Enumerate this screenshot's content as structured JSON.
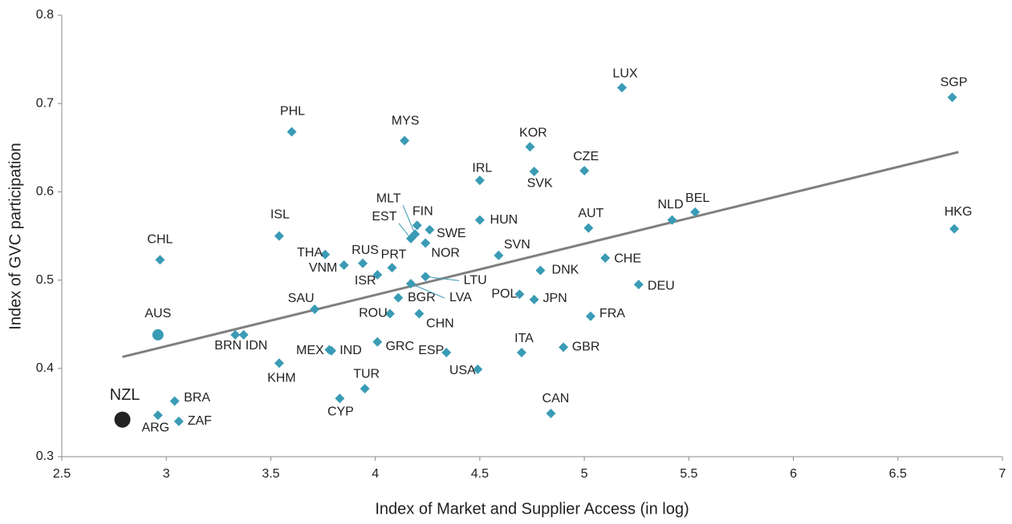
{
  "chart_data": {
    "type": "scatter",
    "x_label": "Index of Market and Supplier Access (in log)",
    "y_label": "Index of GVC participation",
    "xlim": [
      2.5,
      7
    ],
    "xticks": [
      2.5,
      3,
      3.5,
      4,
      4.5,
      5,
      5.5,
      6,
      6.5,
      7
    ],
    "ylim": [
      0.3,
      0.8
    ],
    "yticks": [
      0.3,
      0.4,
      0.5,
      0.6,
      0.7,
      0.8
    ],
    "grid": false,
    "color": "#3a9bb5",
    "trendline_color": "#808080",
    "trendline": {
      "x": [
        2.79,
        6.79
      ],
      "y": [
        0.413,
        0.645
      ]
    },
    "points": [
      {
        "label": "NZL",
        "x": 2.79,
        "y": 0.342,
        "marker": "circle",
        "color": "#222222"
      },
      {
        "label": "AUS",
        "x": 2.96,
        "y": 0.438,
        "marker": "circle"
      },
      {
        "label": "CHL",
        "x": 2.97,
        "y": 0.523
      },
      {
        "label": "ARG",
        "x": 2.96,
        "y": 0.347
      },
      {
        "label": "BRA",
        "x": 3.04,
        "y": 0.363
      },
      {
        "label": "ZAF",
        "x": 3.06,
        "y": 0.34
      },
      {
        "label": "BRN",
        "x": 3.33,
        "y": 0.438
      },
      {
        "label": "IDN",
        "x": 3.37,
        "y": 0.438
      },
      {
        "label": "KHM",
        "x": 3.54,
        "y": 0.406
      },
      {
        "label": "ISL",
        "x": 3.54,
        "y": 0.55
      },
      {
        "label": "PHL",
        "x": 3.6,
        "y": 0.668
      },
      {
        "label": "SAU",
        "x": 3.71,
        "y": 0.467
      },
      {
        "label": "THA",
        "x": 3.76,
        "y": 0.529
      },
      {
        "label": "VNM",
        "x": 3.85,
        "y": 0.517
      },
      {
        "label": "MEX",
        "x": 3.78,
        "y": 0.421
      },
      {
        "label": "IND",
        "x": 3.79,
        "y": 0.42
      },
      {
        "label": "CYP",
        "x": 3.83,
        "y": 0.366
      },
      {
        "label": "TUR",
        "x": 3.95,
        "y": 0.377
      },
      {
        "label": "RUS",
        "x": 3.94,
        "y": 0.519
      },
      {
        "label": "ISR",
        "x": 4.01,
        "y": 0.506
      },
      {
        "label": "GRC",
        "x": 4.01,
        "y": 0.43
      },
      {
        "label": "PRT",
        "x": 4.08,
        "y": 0.514
      },
      {
        "label": "ROU",
        "x": 4.07,
        "y": 0.462
      },
      {
        "label": "BGR",
        "x": 4.11,
        "y": 0.48
      },
      {
        "label": "MYS",
        "x": 4.14,
        "y": 0.658
      },
      {
        "label": "FIN",
        "x": 4.2,
        "y": 0.562
      },
      {
        "label": "MLT",
        "x": 4.19,
        "y": 0.552
      },
      {
        "label": "EST",
        "x": 4.17,
        "y": 0.547
      },
      {
        "label": "SWE",
        "x": 4.26,
        "y": 0.557
      },
      {
        "label": "NOR",
        "x": 4.24,
        "y": 0.542
      },
      {
        "label": "LTU",
        "x": 4.24,
        "y": 0.504
      },
      {
        "label": "LVA",
        "x": 4.17,
        "y": 0.496
      },
      {
        "label": "CHN",
        "x": 4.21,
        "y": 0.462
      },
      {
        "label": "ESP",
        "x": 4.34,
        "y": 0.418
      },
      {
        "label": "USA",
        "x": 4.49,
        "y": 0.399
      },
      {
        "label": "IRL",
        "x": 4.5,
        "y": 0.613
      },
      {
        "label": "HUN",
        "x": 4.5,
        "y": 0.568
      },
      {
        "label": "SVN",
        "x": 4.59,
        "y": 0.528
      },
      {
        "label": "POL",
        "x": 4.69,
        "y": 0.484
      },
      {
        "label": "JPN",
        "x": 4.76,
        "y": 0.478
      },
      {
        "label": "ITA",
        "x": 4.7,
        "y": 0.418
      },
      {
        "label": "KOR",
        "x": 4.74,
        "y": 0.651
      },
      {
        "label": "SVK",
        "x": 4.76,
        "y": 0.623
      },
      {
        "label": "DNK",
        "x": 4.79,
        "y": 0.511
      },
      {
        "label": "CAN",
        "x": 4.84,
        "y": 0.349
      },
      {
        "label": "GBR",
        "x": 4.9,
        "y": 0.424
      },
      {
        "label": "CZE",
        "x": 5.0,
        "y": 0.624
      },
      {
        "label": "AUT",
        "x": 5.02,
        "y": 0.559
      },
      {
        "label": "FRA",
        "x": 5.03,
        "y": 0.459
      },
      {
        "label": "CHE",
        "x": 5.1,
        "y": 0.525
      },
      {
        "label": "DEU",
        "x": 5.26,
        "y": 0.495
      },
      {
        "label": "LUX",
        "x": 5.18,
        "y": 0.718
      },
      {
        "label": "NLD",
        "x": 5.42,
        "y": 0.568
      },
      {
        "label": "BEL",
        "x": 5.53,
        "y": 0.577
      },
      {
        "label": "SGP",
        "x": 6.76,
        "y": 0.707
      },
      {
        "label": "HKG",
        "x": 6.77,
        "y": 0.558
      }
    ]
  }
}
